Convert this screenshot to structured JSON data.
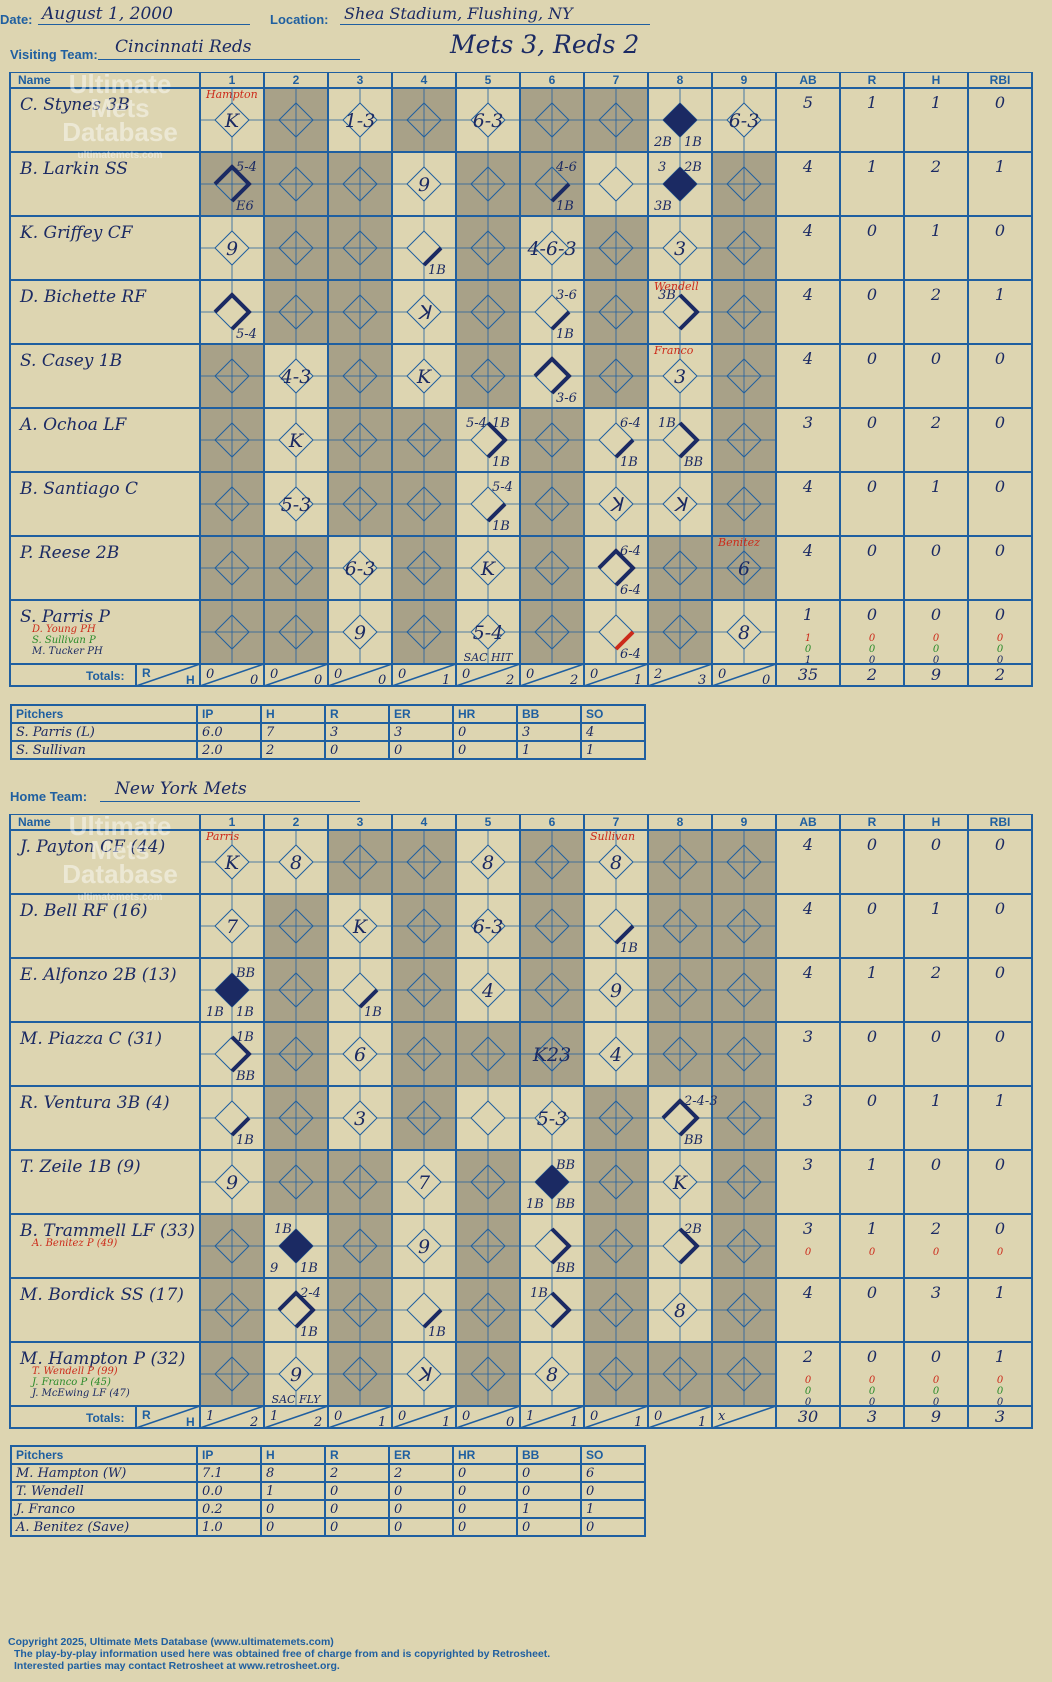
{
  "header": {
    "date_label": "Date:",
    "date": "August 1, 2000",
    "location_label": "Location:",
    "location": "Shea Stadium, Flushing, NY",
    "title": "Mets 3, Reds 2"
  },
  "watermark": {
    "line1": "Ultimate",
    "line2": "Mets",
    "line3": "Database",
    "url": "ultimatemets.com"
  },
  "columns": {
    "name": "Name",
    "innings": [
      "1",
      "2",
      "3",
      "4",
      "5",
      "6",
      "7",
      "8",
      "9"
    ],
    "stats": [
      "AB",
      "R",
      "H",
      "RBI"
    ],
    "totals": "Totals:",
    "r": "R",
    "h": "H"
  },
  "visitors": {
    "team_label": "Visiting Team:",
    "team": "Cincinnati Reds",
    "batters": [
      {
        "name": "C. Stynes 3B",
        "subs": [],
        "stats": [
          [
            "5",
            "1",
            "1",
            "0"
          ]
        ]
      },
      {
        "name": "B. Larkin SS",
        "subs": [],
        "stats": [
          [
            "4",
            "1",
            "2",
            "1"
          ]
        ]
      },
      {
        "name": "K. Griffey CF",
        "subs": [],
        "stats": [
          [
            "4",
            "0",
            "1",
            "0"
          ]
        ]
      },
      {
        "name": "D. Bichette RF",
        "subs": [],
        "stats": [
          [
            "4",
            "0",
            "2",
            "1"
          ]
        ]
      },
      {
        "name": "S. Casey 1B",
        "subs": [],
        "stats": [
          [
            "4",
            "0",
            "0",
            "0"
          ]
        ]
      },
      {
        "name": "A. Ochoa LF",
        "subs": [],
        "stats": [
          [
            "3",
            "0",
            "2",
            "0"
          ]
        ]
      },
      {
        "name": "B. Santiago C",
        "subs": [],
        "stats": [
          [
            "4",
            "0",
            "1",
            "0"
          ]
        ]
      },
      {
        "name": "P. Reese 2B",
        "subs": [],
        "stats": [
          [
            "4",
            "0",
            "0",
            "0"
          ]
        ]
      },
      {
        "name": "S. Parris P",
        "subs": [
          {
            "name": "D. Young PH",
            "color": "#cc2a1a"
          },
          {
            "name": "S. Sullivan P",
            "color": "#2a8a2a"
          },
          {
            "name": "M. Tucker PH",
            "color": "#1b2a63"
          }
        ],
        "stats": [
          [
            "1",
            "0",
            "0",
            "0"
          ],
          [
            "1",
            "0",
            "0",
            "0"
          ],
          [
            "0",
            "0",
            "0",
            "0"
          ],
          [
            "1",
            "0",
            "0",
            "0"
          ]
        ]
      }
    ],
    "marks": [
      {
        "r": 0,
        "c": 0,
        "t": "K",
        "top": "Hampton"
      },
      {
        "r": 0,
        "c": 2,
        "t": "1-3"
      },
      {
        "r": 0,
        "c": 4,
        "t": "6-3"
      },
      {
        "r": 0,
        "c": 7,
        "d": 4,
        "bl": "2B",
        "br": "1B"
      },
      {
        "r": 0,
        "c": 8,
        "t": "6-3"
      },
      {
        "r": 1,
        "c": 0,
        "d": 3,
        "tr": "5-4",
        "br": "E6"
      },
      {
        "r": 1,
        "c": 3,
        "t": "9"
      },
      {
        "r": 1,
        "c": 5,
        "d": 1,
        "tr": "4-6",
        "br": "1B"
      },
      {
        "r": 1,
        "c": 7,
        "d": 4,
        "tl": "3",
        "tr": "2B",
        "bl": "3B"
      },
      {
        "r": 2,
        "c": 0,
        "t": "9"
      },
      {
        "r": 2,
        "c": 3,
        "d": 1,
        "br": "1B"
      },
      {
        "r": 2,
        "c": 5,
        "t": "4-6-3"
      },
      {
        "r": 2,
        "c": 7,
        "t": "3"
      },
      {
        "r": 3,
        "c": 0,
        "d": 3,
        "br": "5-4"
      },
      {
        "r": 3,
        "c": 3,
        "t": "ꓘ"
      },
      {
        "r": 3,
        "c": 5,
        "d": 1,
        "tr": "3-6",
        "br": "1B"
      },
      {
        "r": 3,
        "c": 7,
        "d": 2,
        "tl": "3B",
        "top": "Wendell"
      },
      {
        "r": 4,
        "c": 1,
        "t": "4-3"
      },
      {
        "r": 4,
        "c": 3,
        "t": "K"
      },
      {
        "r": 4,
        "c": 5,
        "d": 3,
        "br": "3-6"
      },
      {
        "r": 4,
        "c": 7,
        "t": "3",
        "top": "Franco"
      },
      {
        "r": 5,
        "c": 1,
        "t": "K"
      },
      {
        "r": 5,
        "c": 4,
        "d": 2,
        "tl": "5-4",
        "tr": "1B",
        "br": "1B"
      },
      {
        "r": 5,
        "c": 6,
        "d": 1,
        "tr": "6-4",
        "br": "1B"
      },
      {
        "r": 5,
        "c": 7,
        "d": 2,
        "tl": "1B",
        "br": "BB"
      },
      {
        "r": 6,
        "c": 1,
        "t": "5-3"
      },
      {
        "r": 6,
        "c": 4,
        "d": 1,
        "tr": "5-4",
        "br": "1B"
      },
      {
        "r": 6,
        "c": 6,
        "t": "ꓘ"
      },
      {
        "r": 6,
        "c": 7,
        "t": "ꓘ"
      },
      {
        "r": 7,
        "c": 2,
        "t": "6-3"
      },
      {
        "r": 7,
        "c": 4,
        "t": "K"
      },
      {
        "r": 7,
        "c": 6,
        "d": 3,
        "tr": "6-4",
        "br": "6-4"
      },
      {
        "r": 7,
        "c": 8,
        "t": "6",
        "top": "Benitez"
      },
      {
        "r": 8,
        "c": 2,
        "t": "9"
      },
      {
        "r": 8,
        "c": 4,
        "t": "5-4",
        "bot": "SAC HIT"
      },
      {
        "r": 8,
        "c": 6,
        "d": 5,
        "br": "6-4"
      },
      {
        "r": 8,
        "c": 8,
        "t": "8"
      }
    ],
    "totals": [
      [
        "0",
        "0"
      ],
      [
        "0",
        "0"
      ],
      [
        "0",
        "0"
      ],
      [
        "0",
        "1"
      ],
      [
        "0",
        "2"
      ],
      [
        "0",
        "2"
      ],
      [
        "0",
        "1"
      ],
      [
        "2",
        "3"
      ],
      [
        "0",
        "0"
      ]
    ],
    "total_stats": [
      "35",
      "2",
      "9",
      "2"
    ],
    "pitchers_header": [
      "Pitchers",
      "IP",
      "H",
      "R",
      "ER",
      "HR",
      "BB",
      "SO"
    ],
    "pitchers": [
      [
        "S. Parris (L)",
        "6.0",
        "7",
        "3",
        "3",
        "0",
        "3",
        "4"
      ],
      [
        "S. Sullivan",
        "2.0",
        "2",
        "0",
        "0",
        "0",
        "1",
        "1"
      ]
    ]
  },
  "home": {
    "team_label": "Home Team:",
    "team": "New York Mets",
    "batters": [
      {
        "name": "J. Payton CF (44)",
        "subs": [],
        "stats": [
          [
            "4",
            "0",
            "0",
            "0"
          ]
        ]
      },
      {
        "name": "D. Bell RF (16)",
        "subs": [],
        "stats": [
          [
            "4",
            "0",
            "1",
            "0"
          ]
        ]
      },
      {
        "name": "E. Alfonzo 2B (13)",
        "subs": [],
        "stats": [
          [
            "4",
            "1",
            "2",
            "0"
          ]
        ]
      },
      {
        "name": "M. Piazza C (31)",
        "subs": [],
        "stats": [
          [
            "3",
            "0",
            "0",
            "0"
          ]
        ]
      },
      {
        "name": "R. Ventura 3B (4)",
        "subs": [],
        "stats": [
          [
            "3",
            "0",
            "1",
            "1"
          ]
        ]
      },
      {
        "name": "T. Zeile 1B (9)",
        "subs": [],
        "stats": [
          [
            "3",
            "1",
            "0",
            "0"
          ]
        ]
      },
      {
        "name": "B. Trammell LF (33)",
        "subs": [
          {
            "name": "A. Benitez P (49)",
            "color": "#cc2a1a"
          }
        ],
        "stats": [
          [
            "3",
            "1",
            "2",
            "0"
          ],
          [
            "0",
            "0",
            "0",
            "0"
          ]
        ]
      },
      {
        "name": "M. Bordick SS (17)",
        "subs": [],
        "stats": [
          [
            "4",
            "0",
            "3",
            "1"
          ]
        ]
      },
      {
        "name": "M. Hampton P (32)",
        "subs": [
          {
            "name": "T. Wendell P (99)",
            "color": "#cc2a1a"
          },
          {
            "name": "J. Franco P (45)",
            "color": "#2a8a2a"
          },
          {
            "name": "J. McEwing LF (47)",
            "color": "#1b2a63"
          }
        ],
        "stats": [
          [
            "2",
            "0",
            "0",
            "1"
          ],
          [
            "0",
            "0",
            "0",
            "0"
          ],
          [
            "0",
            "0",
            "0",
            "0"
          ],
          [
            "0",
            "0",
            "0",
            "0"
          ]
        ]
      }
    ],
    "marks": [
      {
        "r": 0,
        "c": 0,
        "t": "K",
        "top": "Parris"
      },
      {
        "r": 0,
        "c": 1,
        "t": "8"
      },
      {
        "r": 0,
        "c": 4,
        "t": "8"
      },
      {
        "r": 0,
        "c": 6,
        "t": "8",
        "top": "Sullivan"
      },
      {
        "r": 1,
        "c": 0,
        "t": "7"
      },
      {
        "r": 1,
        "c": 2,
        "t": "K"
      },
      {
        "r": 1,
        "c": 4,
        "t": "6-3"
      },
      {
        "r": 1,
        "c": 6,
        "d": 1,
        "br": "1B"
      },
      {
        "r": 2,
        "c": 0,
        "d": 4,
        "tr": "BB",
        "bl": "1B",
        "br": "1B"
      },
      {
        "r": 2,
        "c": 2,
        "d": 1,
        "br": "1B"
      },
      {
        "r": 2,
        "c": 4,
        "t": "4"
      },
      {
        "r": 2,
        "c": 6,
        "t": "9"
      },
      {
        "r": 3,
        "c": 0,
        "d": 2,
        "tr": "1B",
        "br": "BB"
      },
      {
        "r": 3,
        "c": 2,
        "t": "6"
      },
      {
        "r": 3,
        "c": 5,
        "t": "K23"
      },
      {
        "r": 3,
        "c": 6,
        "t": "4"
      },
      {
        "r": 4,
        "c": 0,
        "d": 1,
        "br": "1B"
      },
      {
        "r": 4,
        "c": 2,
        "t": "3"
      },
      {
        "r": 4,
        "c": 5,
        "t": "5-3"
      },
      {
        "r": 4,
        "c": 7,
        "d": 3,
        "tr": "2-4-3",
        "br": "BB"
      },
      {
        "r": 5,
        "c": 0,
        "t": "9"
      },
      {
        "r": 5,
        "c": 3,
        "t": "7"
      },
      {
        "r": 5,
        "c": 5,
        "d": 4,
        "tr": "BB",
        "bl": "1B",
        "br": "BB"
      },
      {
        "r": 5,
        "c": 7,
        "t": "K"
      },
      {
        "r": 6,
        "c": 1,
        "d": 4,
        "tl": "1B",
        "bl": "9",
        "br": "1B"
      },
      {
        "r": 6,
        "c": 3,
        "t": "9"
      },
      {
        "r": 6,
        "c": 5,
        "d": 2,
        "br": "BB"
      },
      {
        "r": 6,
        "c": 7,
        "d": 2,
        "tr": "2B"
      },
      {
        "r": 7,
        "c": 1,
        "d": 3,
        "tr": "2-4",
        "br": "1B"
      },
      {
        "r": 7,
        "c": 3,
        "d": 1,
        "br": "1B"
      },
      {
        "r": 7,
        "c": 5,
        "d": 2,
        "tl": "1B"
      },
      {
        "r": 7,
        "c": 7,
        "t": "8"
      },
      {
        "r": 8,
        "c": 1,
        "t": "9",
        "bot": "SAC FLY"
      },
      {
        "r": 8,
        "c": 3,
        "t": "ꓘ"
      },
      {
        "r": 8,
        "c": 5,
        "t": "8"
      }
    ],
    "totals": [
      [
        "1",
        "2"
      ],
      [
        "1",
        "2"
      ],
      [
        "0",
        "1"
      ],
      [
        "0",
        "1"
      ],
      [
        "0",
        "0"
      ],
      [
        "1",
        "1"
      ],
      [
        "0",
        "1"
      ],
      [
        "0",
        "1"
      ],
      [
        "x",
        ""
      ]
    ],
    "total_stats": [
      "30",
      "3",
      "9",
      "3"
    ],
    "pitchers_header": [
      "Pitchers",
      "IP",
      "H",
      "R",
      "ER",
      "HR",
      "BB",
      "SO"
    ],
    "pitchers": [
      [
        "M. Hampton (W)",
        "7.1",
        "8",
        "2",
        "2",
        "0",
        "0",
        "6"
      ],
      [
        "T. Wendell",
        "0.0",
        "1",
        "0",
        "0",
        "0",
        "0",
        "0"
      ],
      [
        "J. Franco",
        "0.2",
        "0",
        "0",
        "0",
        "0",
        "1",
        "1"
      ],
      [
        "A. Benitez (Save)",
        "1.0",
        "0",
        "0",
        "0",
        "0",
        "0",
        "0"
      ]
    ]
  },
  "footer": {
    "line1": "Copyright 2025, Ultimate Mets Database (www.ultimatemets.com)",
    "line2": "The play-by-play information used here was obtained free of charge from and is copyrighted by Retrosheet.",
    "line3": "Interested parties may contact Retrosheet at www.retrosheet.org."
  },
  "colors": {
    "background": "#ddd5b1",
    "grid": "#1f5fa0",
    "shade": "#a8a188",
    "ink": "#1b2a63",
    "red": "#cc2a1a",
    "green": "#2a8a2a"
  }
}
